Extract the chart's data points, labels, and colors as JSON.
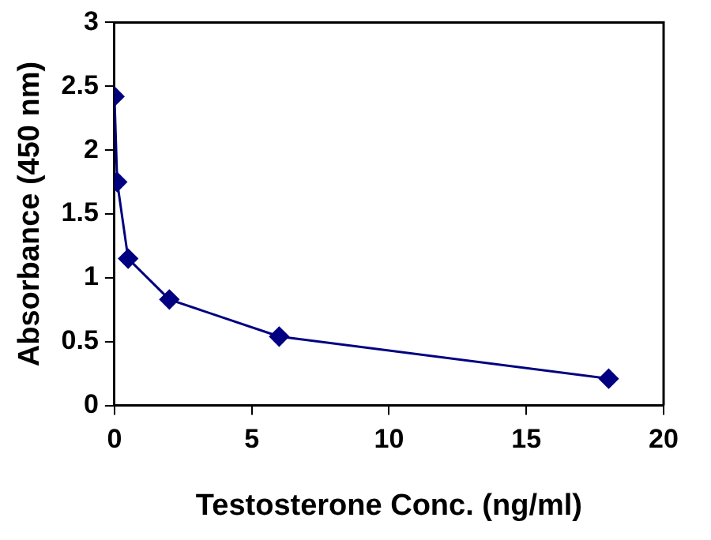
{
  "chart_data": {
    "type": "line",
    "xlabel": "Testosterone Conc. (ng/ml)",
    "ylabel": "Absorbance (450 nm)",
    "x": [
      0,
      0.1,
      0.5,
      2,
      6,
      18
    ],
    "series": [
      {
        "color": "#000080",
        "values": [
          2.42,
          1.75,
          1.15,
          0.83,
          0.54,
          0.21
        ]
      }
    ],
    "xlim": [
      0,
      20
    ],
    "xticks": [
      0,
      5,
      10,
      15,
      20
    ],
    "ylim": [
      0,
      3
    ],
    "yticks": [
      0,
      0.5,
      1,
      1.5,
      2,
      2.5,
      3
    ],
    "grid": false,
    "legend": false,
    "marker": "diamond",
    "line_style": "solid"
  }
}
